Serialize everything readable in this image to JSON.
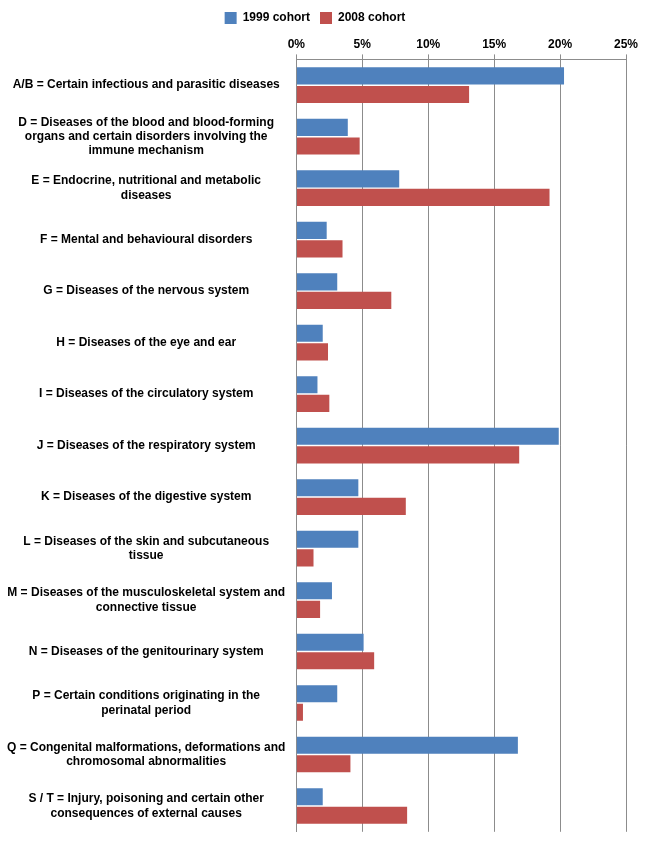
{
  "chart_data": {
    "type": "bar",
    "orientation": "horizontal",
    "categories": [
      "A/B = Certain infectious and parasitic diseases",
      "D = Diseases of the blood and blood-forming organs and certain disorders involving the immune mechanism",
      "E = Endocrine, nutritional and metabolic diseases",
      "F = Mental and behavioural disorders",
      "G = Diseases of the nervous system",
      "H = Diseases of the eye and ear",
      "I = Diseases of the circulatory system",
      "J = Diseases of the respiratory system",
      "K = Diseases of the digestive system",
      "L = Diseases of the skin and subcutaneous tissue",
      "M = Diseases of the musculoskeletal system and connective tissue",
      "N = Diseases of the genitourinary system",
      "P = Certain conditions originating in the perinatal period",
      "Q = Congenital malformations, deformations and chromosomal abnormalities",
      "S / T = Injury, poisoning and certain other consequences of external causes"
    ],
    "series": [
      {
        "name": "1999 cohort",
        "color": "#4f81bd",
        "values": [
          20.3,
          3.9,
          7.8,
          2.3,
          3.1,
          2.0,
          1.6,
          19.9,
          4.7,
          4.7,
          2.7,
          5.1,
          3.1,
          16.8,
          2.0
        ]
      },
      {
        "name": "2008 cohort",
        "color": "#c0504d",
        "values": [
          13.1,
          4.8,
          19.2,
          3.5,
          7.2,
          2.4,
          2.5,
          16.9,
          8.3,
          1.3,
          1.8,
          5.9,
          0.5,
          4.1,
          8.4
        ]
      }
    ],
    "xlim": [
      0,
      25
    ],
    "xticks": [
      {
        "value": 0,
        "label": "0%"
      },
      {
        "value": 5,
        "label": "5%"
      },
      {
        "value": 10,
        "label": "10%"
      },
      {
        "value": 15,
        "label": "15%"
      },
      {
        "value": 20,
        "label": "20%"
      },
      {
        "value": 25,
        "label": "25%"
      }
    ],
    "grid": true,
    "legend": "top"
  }
}
